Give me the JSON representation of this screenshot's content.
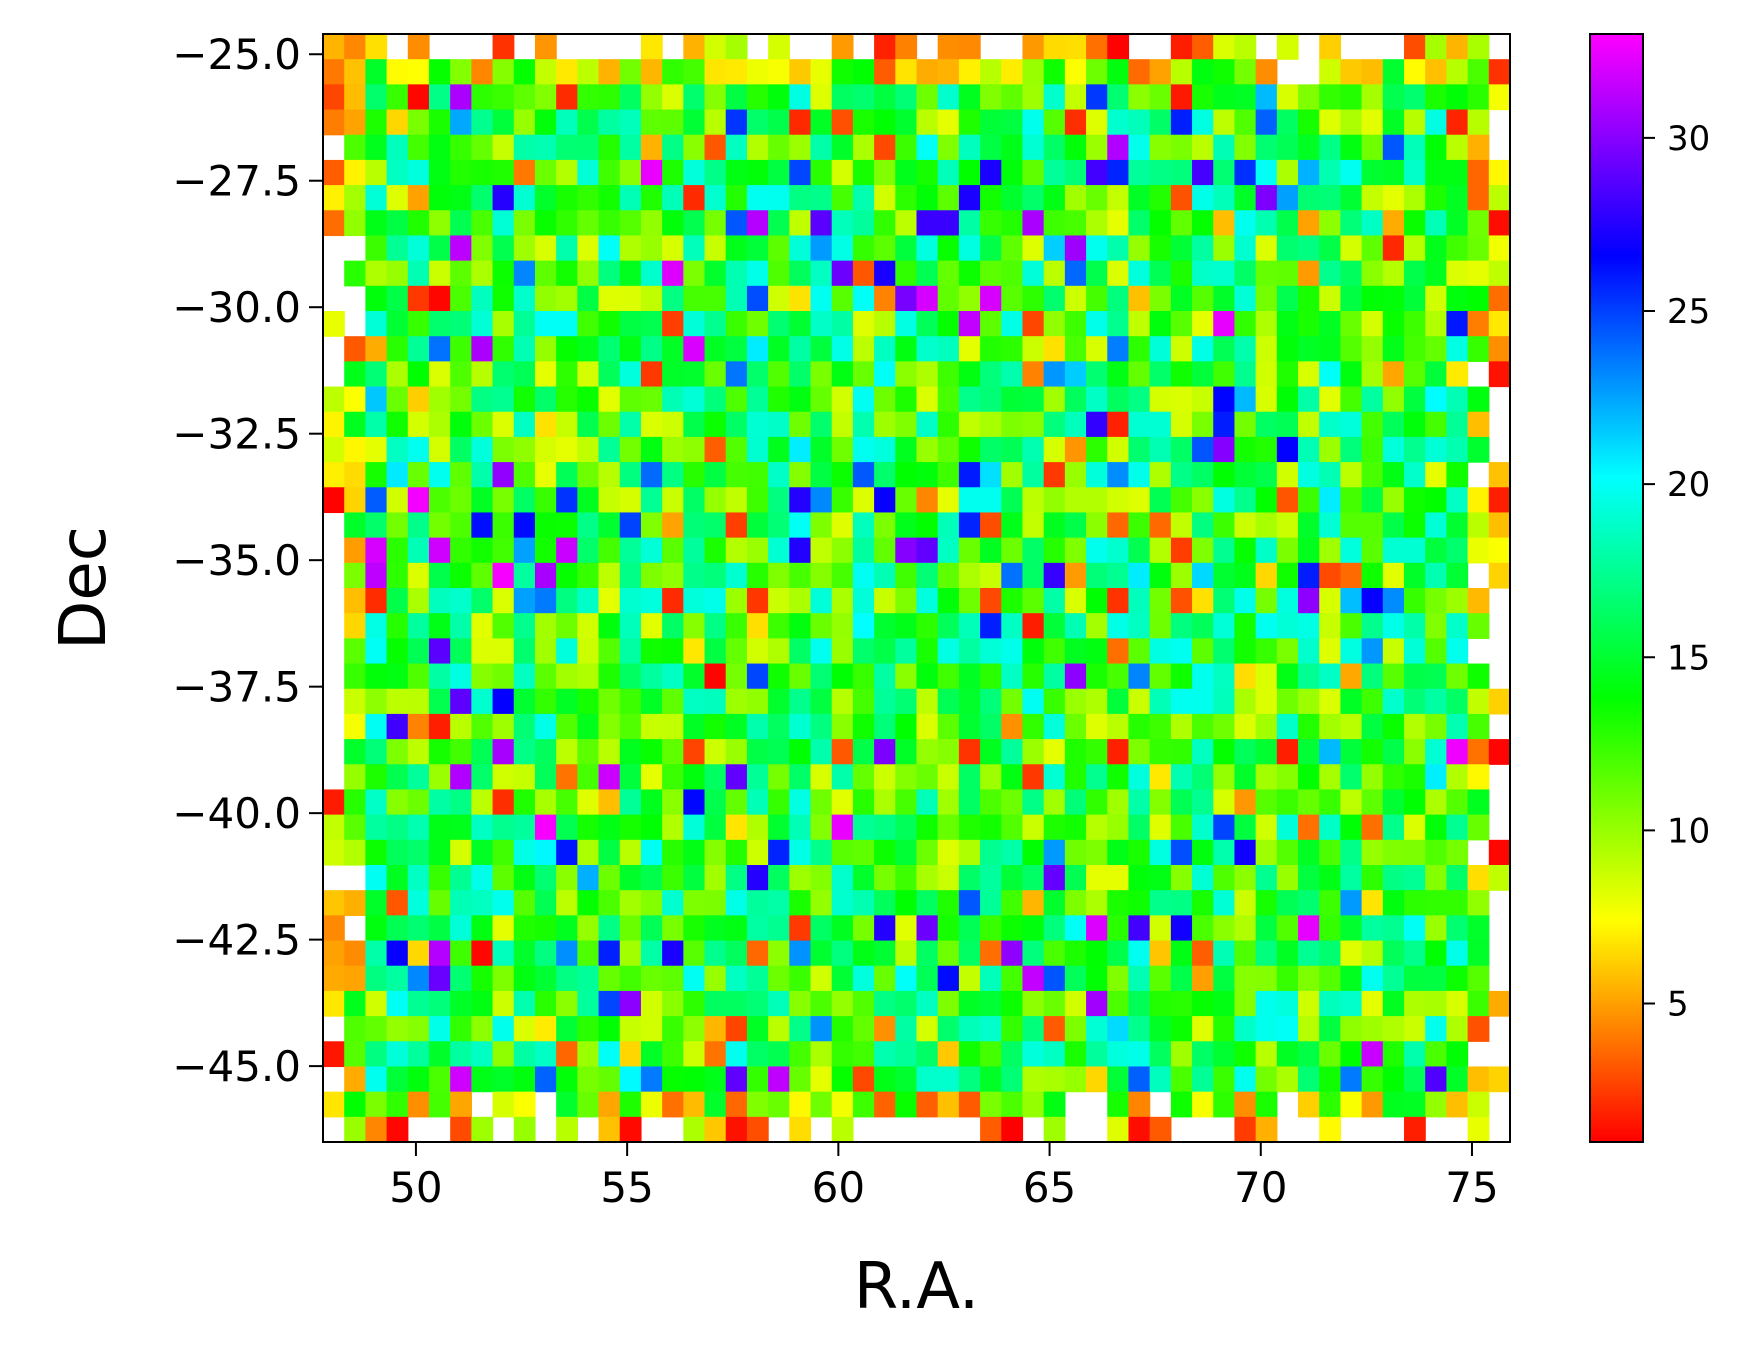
{
  "chart_data": {
    "type": "heatmap",
    "title": "",
    "xlabel": "R.A.",
    "ylabel": "Dec",
    "xlim": [
      47.8,
      75.9
    ],
    "ylim": [
      -46.5,
      -24.6
    ],
    "x_ticks": [
      50,
      55,
      60,
      65,
      70,
      75
    ],
    "x_tick_labels": [
      "50",
      "55",
      "60",
      "65",
      "70",
      "75"
    ],
    "y_ticks": [
      -25.0,
      -27.5,
      -30.0,
      -32.5,
      -35.0,
      -37.5,
      -40.0,
      -42.5,
      -45.0
    ],
    "y_tick_labels": [
      "−25.0",
      "−27.5",
      "−30.0",
      "−32.5",
      "−35.0",
      "−37.5",
      "−40.0",
      "−42.5",
      "−45.0"
    ],
    "colorbar": {
      "min": 1,
      "max": 33,
      "ticks": [
        5,
        10,
        15,
        20,
        25,
        30
      ],
      "tick_labels": [
        "5",
        "10",
        "15",
        "20",
        "25",
        "30"
      ],
      "colormap": "gist_rainbow_r",
      "stops": [
        "#ff0000",
        "#ff8000",
        "#ffff00",
        "#80ff00",
        "#00ff00",
        "#00ff80",
        "#00ffff",
        "#0080ff",
        "#0000ff",
        "#8000ff",
        "#ff00ff"
      ]
    },
    "grid": false,
    "bins": {
      "nx": 56,
      "ny": 44,
      "ra_range": [
        47.8,
        75.9
      ],
      "dec_range": [
        -46.5,
        -24.6
      ]
    },
    "value_distribution": {
      "typical_low": 8,
      "typical_high": 18,
      "edge_values": "low (1-8), partially filled",
      "occasional_high": "22-33"
    }
  }
}
